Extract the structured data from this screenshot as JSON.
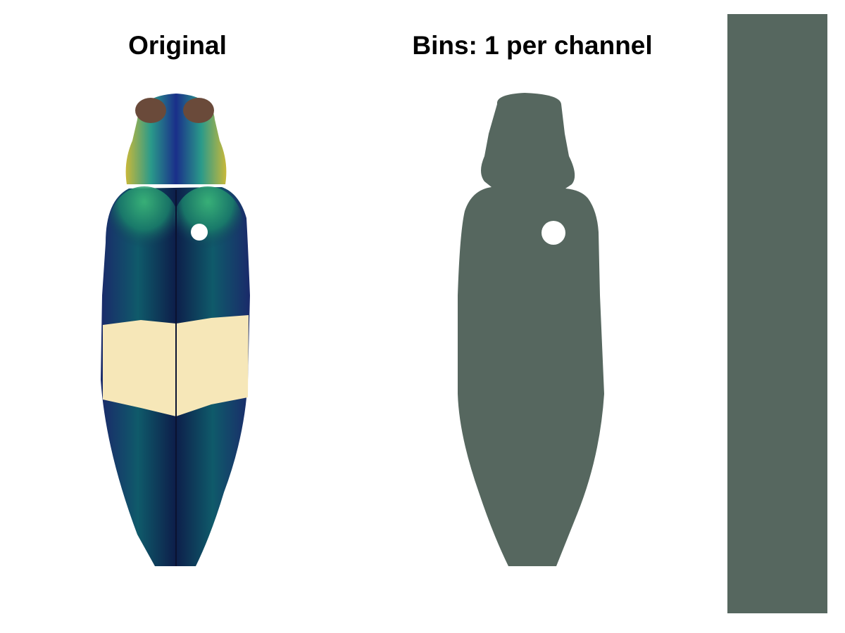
{
  "titles": {
    "original": "Original",
    "quantized": "Bins: 1 per channel"
  },
  "colors": {
    "quantized_color": "#56675f",
    "background": "#ffffff",
    "band": "#f6e7b8",
    "shell_dark": "#0e1f4a",
    "shell_green": "#1f8f6a",
    "head_brown": "#6a4a3a",
    "head_yellow": "#d8c23a"
  },
  "quantization": {
    "bins_per_channel": 1
  }
}
